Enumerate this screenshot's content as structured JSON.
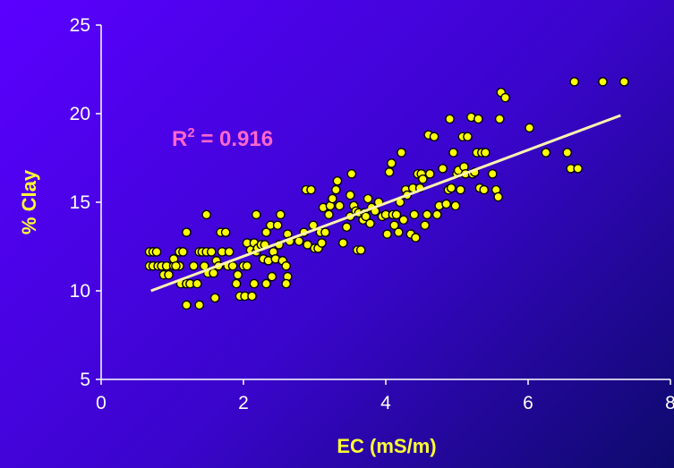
{
  "chart_data": {
    "type": "scatter",
    "xlabel": "EC (mS/m)",
    "ylabel": "% Clay",
    "xlim": [
      0,
      8
    ],
    "ylim": [
      5,
      25
    ],
    "xticks": [
      "0",
      "2",
      "4",
      "6",
      "8"
    ],
    "yticks": [
      "5",
      "10",
      "15",
      "20",
      "25"
    ],
    "annotation": {
      "prefix": "R",
      "sup": "2",
      "suffix": " = 0.916"
    },
    "trendline": {
      "x": [
        0.7,
        7.3
      ],
      "y": [
        10.0,
        19.9
      ]
    },
    "points": [
      [
        0.68,
        12.2
      ],
      [
        0.73,
        12.2
      ],
      [
        0.78,
        12.2
      ],
      [
        0.68,
        11.4
      ],
      [
        0.73,
        11.4
      ],
      [
        0.8,
        11.4
      ],
      [
        0.85,
        11.4
      ],
      [
        0.92,
        11.4
      ],
      [
        0.88,
        10.9
      ],
      [
        0.95,
        10.9
      ],
      [
        1.02,
        11.4
      ],
      [
        1.1,
        11.4
      ],
      [
        1.02,
        11.8
      ],
      [
        1.05,
        11.4
      ],
      [
        1.1,
        12.2
      ],
      [
        1.15,
        12.2
      ],
      [
        1.12,
        10.4
      ],
      [
        1.2,
        10.4
      ],
      [
        1.25,
        10.4
      ],
      [
        1.35,
        10.4
      ],
      [
        1.2,
        9.2
      ],
      [
        1.38,
        9.2
      ],
      [
        1.2,
        13.3
      ],
      [
        1.3,
        11.4
      ],
      [
        1.38,
        12.2
      ],
      [
        1.42,
        12.2
      ],
      [
        1.48,
        12.2
      ],
      [
        1.55,
        12.2
      ],
      [
        1.48,
        14.3
      ],
      [
        1.45,
        11.4
      ],
      [
        1.5,
        11.0
      ],
      [
        1.58,
        11.0
      ],
      [
        1.62,
        11.7
      ],
      [
        1.65,
        11.4
      ],
      [
        1.7,
        12.2
      ],
      [
        1.6,
        9.6
      ],
      [
        1.68,
        13.3
      ],
      [
        1.75,
        13.3
      ],
      [
        1.8,
        12.2
      ],
      [
        1.78,
        11.4
      ],
      [
        1.85,
        11.4
      ],
      [
        1.9,
        10.4
      ],
      [
        1.92,
        10.9
      ],
      [
        1.95,
        9.7
      ],
      [
        2.02,
        9.7
      ],
      [
        2.0,
        11.4
      ],
      [
        2.05,
        11.4
      ],
      [
        2.12,
        9.7
      ],
      [
        2.05,
        12.7
      ],
      [
        2.1,
        12.3
      ],
      [
        2.15,
        12.7
      ],
      [
        2.18,
        12.2
      ],
      [
        2.15,
        10.4
      ],
      [
        2.2,
        12.4
      ],
      [
        2.18,
        14.3
      ],
      [
        2.25,
        12.6
      ],
      [
        2.3,
        12.6
      ],
      [
        2.28,
        11.8
      ],
      [
        2.32,
        10.4
      ],
      [
        2.35,
        11.7
      ],
      [
        2.32,
        13.3
      ],
      [
        2.38,
        13.7
      ],
      [
        2.42,
        12.2
      ],
      [
        2.45,
        11.8
      ],
      [
        2.4,
        10.8
      ],
      [
        2.48,
        13.7
      ],
      [
        2.5,
        12.6
      ],
      [
        2.52,
        14.3
      ],
      [
        2.55,
        11.7
      ],
      [
        2.6,
        11.4
      ],
      [
        2.62,
        10.8
      ],
      [
        2.6,
        10.4
      ],
      [
        2.62,
        13.2
      ],
      [
        2.65,
        12.8
      ],
      [
        2.78,
        12.8
      ],
      [
        2.85,
        13.3
      ],
      [
        2.9,
        12.6
      ],
      [
        2.88,
        15.7
      ],
      [
        2.95,
        15.7
      ],
      [
        2.98,
        13.7
      ],
      [
        3.0,
        12.4
      ],
      [
        3.05,
        12.4
      ],
      [
        3.08,
        13.3
      ],
      [
        3.1,
        12.7
      ],
      [
        3.12,
        14.7
      ],
      [
        3.15,
        13.3
      ],
      [
        3.2,
        14.3
      ],
      [
        3.22,
        14.8
      ],
      [
        3.25,
        15.2
      ],
      [
        3.3,
        15.7
      ],
      [
        3.32,
        16.2
      ],
      [
        3.35,
        14.8
      ],
      [
        3.4,
        12.7
      ],
      [
        3.45,
        13.6
      ],
      [
        3.5,
        14.2
      ],
      [
        3.52,
        16.6
      ],
      [
        3.5,
        15.4
      ],
      [
        3.55,
        14.8
      ],
      [
        3.58,
        14.5
      ],
      [
        3.6,
        12.3
      ],
      [
        3.62,
        14.4
      ],
      [
        3.65,
        12.3
      ],
      [
        3.68,
        14.0
      ],
      [
        3.7,
        14.4
      ],
      [
        3.72,
        14.2
      ],
      [
        3.75,
        15.2
      ],
      [
        3.78,
        13.8
      ],
      [
        3.8,
        14.7
      ],
      [
        3.85,
        14.5
      ],
      [
        3.9,
        15.0
      ],
      [
        3.95,
        14.2
      ],
      [
        4.0,
        14.3
      ],
      [
        4.02,
        13.2
      ],
      [
        4.05,
        16.7
      ],
      [
        4.08,
        17.2
      ],
      [
        4.1,
        14.3
      ],
      [
        4.12,
        13.7
      ],
      [
        4.15,
        14.3
      ],
      [
        4.18,
        13.3
      ],
      [
        4.2,
        15.0
      ],
      [
        4.22,
        17.8
      ],
      [
        4.25,
        14.0
      ],
      [
        4.28,
        15.7
      ],
      [
        4.3,
        15.4
      ],
      [
        4.35,
        13.2
      ],
      [
        4.38,
        15.8
      ],
      [
        4.4,
        14.3
      ],
      [
        4.42,
        13.0
      ],
      [
        4.45,
        16.6
      ],
      [
        4.48,
        15.8
      ],
      [
        4.5,
        16.6
      ],
      [
        4.52,
        16.3
      ],
      [
        4.55,
        13.7
      ],
      [
        4.58,
        14.3
      ],
      [
        4.6,
        18.8
      ],
      [
        4.62,
        16.6
      ],
      [
        4.68,
        18.7
      ],
      [
        4.72,
        14.3
      ],
      [
        4.75,
        14.8
      ],
      [
        4.8,
        16.9
      ],
      [
        4.85,
        14.9
      ],
      [
        4.88,
        15.7
      ],
      [
        4.9,
        19.7
      ],
      [
        4.92,
        15.8
      ],
      [
        4.95,
        17.8
      ],
      [
        4.98,
        14.8
      ],
      [
        5.0,
        16.6
      ],
      [
        5.02,
        16.8
      ],
      [
        5.05,
        15.7
      ],
      [
        5.08,
        18.7
      ],
      [
        5.1,
        17.0
      ],
      [
        5.12,
        16.6
      ],
      [
        5.15,
        18.7
      ],
      [
        5.2,
        19.8
      ],
      [
        5.22,
        16.6
      ],
      [
        5.25,
        16.7
      ],
      [
        5.28,
        17.8
      ],
      [
        5.3,
        19.7
      ],
      [
        5.32,
        15.8
      ],
      [
        5.35,
        17.8
      ],
      [
        5.38,
        15.7
      ],
      [
        5.4,
        17.8
      ],
      [
        5.5,
        16.6
      ],
      [
        5.55,
        15.7
      ],
      [
        5.58,
        15.3
      ],
      [
        5.6,
        19.7
      ],
      [
        5.62,
        21.2
      ],
      [
        5.68,
        20.9
      ],
      [
        6.02,
        19.2
      ],
      [
        6.25,
        17.8
      ],
      [
        6.55,
        17.8
      ],
      [
        6.6,
        16.9
      ],
      [
        6.65,
        21.8
      ],
      [
        6.7,
        16.9
      ],
      [
        7.05,
        21.8
      ],
      [
        7.35,
        21.8
      ]
    ]
  }
}
